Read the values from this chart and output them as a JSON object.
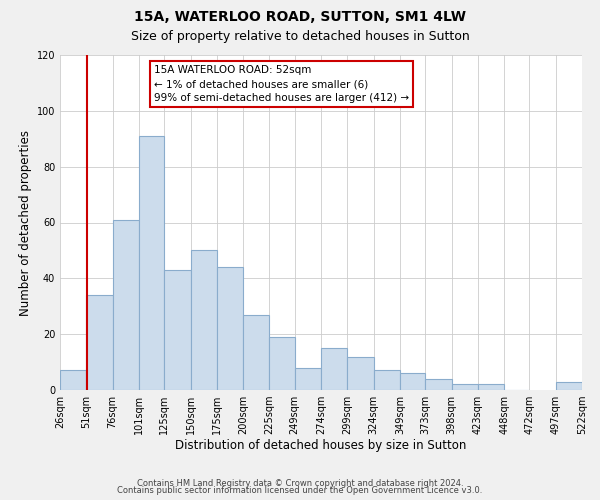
{
  "title": "15A, WATERLOO ROAD, SUTTON, SM1 4LW",
  "subtitle": "Size of property relative to detached houses in Sutton",
  "xlabel": "Distribution of detached houses by size in Sutton",
  "ylabel": "Number of detached properties",
  "footer1": "Contains HM Land Registry data © Crown copyright and database right 2024.",
  "footer2": "Contains public sector information licensed under the Open Government Licence v3.0.",
  "annotation_title": "15A WATERLOO ROAD: 52sqm",
  "annotation_line1": "← 1% of detached houses are smaller (6)",
  "annotation_line2": "99% of semi-detached houses are larger (412) →",
  "bar_values": [
    7,
    34,
    61,
    91,
    43,
    50,
    44,
    27,
    19,
    8,
    15,
    12,
    7,
    6,
    4,
    2,
    2,
    0,
    3
  ],
  "bar_left_edges": [
    26,
    51,
    76,
    101,
    125,
    150,
    175,
    200,
    225,
    249,
    274,
    299,
    324,
    349,
    373,
    398,
    423,
    448,
    497
  ],
  "bar_widths": [
    25,
    25,
    25,
    24,
    25,
    25,
    25,
    25,
    24,
    25,
    25,
    25,
    25,
    24,
    25,
    25,
    25,
    24,
    25
  ],
  "xtick_labels": [
    "26sqm",
    "51sqm",
    "76sqm",
    "101sqm",
    "125sqm",
    "150sqm",
    "175sqm",
    "200sqm",
    "225sqm",
    "249sqm",
    "274sqm",
    "299sqm",
    "324sqm",
    "349sqm",
    "373sqm",
    "398sqm",
    "423sqm",
    "448sqm",
    "472sqm",
    "497sqm",
    "522sqm"
  ],
  "xtick_positions": [
    26,
    51,
    76,
    101,
    125,
    150,
    175,
    200,
    225,
    249,
    274,
    299,
    324,
    349,
    373,
    398,
    423,
    448,
    472,
    497,
    522
  ],
  "ylim": [
    0,
    120
  ],
  "xlim": [
    26,
    522
  ],
  "bar_color": "#ccdcec",
  "bar_edge_color": "#8aaccc",
  "vline_x": 52,
  "vline_color": "#cc0000",
  "background_color": "#f0f0f0",
  "plot_bg_color": "#ffffff",
  "title_fontsize": 10,
  "subtitle_fontsize": 9,
  "axis_label_fontsize": 8.5,
  "tick_fontsize": 7,
  "annotation_fontsize": 7.5,
  "annotation_box_color": "#ffffff",
  "annotation_box_edge": "#cc0000",
  "footer_fontsize": 6,
  "yticks": [
    0,
    20,
    40,
    60,
    80,
    100,
    120
  ]
}
